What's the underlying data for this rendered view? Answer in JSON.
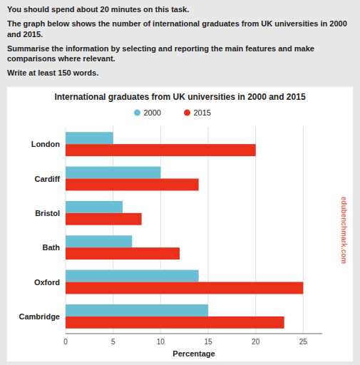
{
  "chart_data": {
    "type": "bar",
    "orientation": "horizontal",
    "title": "International graduates from UK universities in 2000 and 2015",
    "annotations": [
      "You should spend about 20 minutes on this task.",
      "The graph below shows the number of international graduates from UK universities in\n2000 and 2015.",
      "Summarise the information by selecting and reporting the main features and make\ncomparisons where relevant.",
      "Write at least 150 words.",
      "edubenchmark.com"
    ],
    "categories": [
      "Cambridge",
      "Oxford",
      "Bath",
      "Bristol",
      "Cardiff",
      "London"
    ],
    "series": [
      {
        "name": "2000",
        "color": "#6bbfd4",
        "values": [
          15,
          14,
          7,
          6,
          10,
          5
        ]
      },
      {
        "name": "2015",
        "color": "#e8301a",
        "values": [
          23,
          25,
          12,
          8,
          14,
          20
        ]
      }
    ],
    "xlabel": "Percentage",
    "xlim": [
      0,
      27
    ],
    "xticks": [
      0,
      5,
      10,
      15,
      20,
      25
    ],
    "grid": true,
    "legend": "top"
  }
}
